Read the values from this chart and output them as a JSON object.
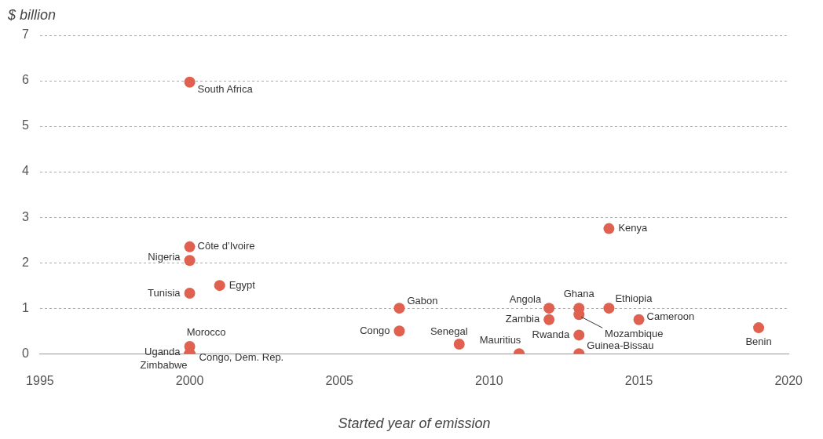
{
  "chart_data": {
    "type": "scatter",
    "ylabel": "$ billion",
    "xlabel": "Started year of emission",
    "series": [
      {
        "color": "#e0614f",
        "x": [
          2000,
          2000,
          2000,
          2000,
          2001,
          2000,
          2000,
          2000,
          2000,
          2007,
          2007,
          2009,
          2011,
          2012,
          2012,
          2013,
          2013,
          2013,
          2013,
          2014,
          2014,
          2015,
          2019
        ],
        "values": [
          5.97,
          2.35,
          2.05,
          1.33,
          1.5,
          0.16,
          0,
          0,
          0,
          1.0,
          0.5,
          0.21,
          0,
          1.0,
          0.75,
          1.0,
          0.86,
          0.41,
          0,
          2.75,
          1.0,
          0.75,
          0.57
        ]
      }
    ],
    "annotations": [
      {
        "text": "South Africa",
        "x": 2000,
        "y": 5.97
      },
      {
        "text": "Côte d’Ivoire",
        "x": 2000,
        "y": 2.35
      },
      {
        "text": "Nigeria",
        "x": 2000,
        "y": 2.05
      },
      {
        "text": "Tunisia",
        "x": 2000,
        "y": 1.33
      },
      {
        "text": "Egypt",
        "x": 2001,
        "y": 1.5
      },
      {
        "text": "Morocco",
        "x": 2000,
        "y": 0.16
      },
      {
        "text": "Uganda",
        "x": 2000,
        "y": 0
      },
      {
        "text": "Zimbabwe",
        "x": 2000,
        "y": 0
      },
      {
        "text": "Congo, Dem. Rep.",
        "x": 2000,
        "y": 0
      },
      {
        "text": "Gabon",
        "x": 2007,
        "y": 1.0
      },
      {
        "text": "Congo",
        "x": 2007,
        "y": 0.5
      },
      {
        "text": "Senegal",
        "x": 2009,
        "y": 0.21
      },
      {
        "text": "Mauritius",
        "x": 2011,
        "y": 0
      },
      {
        "text": "Angola",
        "x": 2012,
        "y": 1.0
      },
      {
        "text": "Zambia",
        "x": 2012,
        "y": 0.75
      },
      {
        "text": "Ghana",
        "x": 2013,
        "y": 1.0
      },
      {
        "text": "Mozambique",
        "x": 2013,
        "y": 0.86
      },
      {
        "text": "Rwanda",
        "x": 2013,
        "y": 0.41
      },
      {
        "text": "Guinea-Bissau",
        "x": 2013,
        "y": 0
      },
      {
        "text": "Kenya",
        "x": 2014,
        "y": 2.75
      },
      {
        "text": "Ethiopia",
        "x": 2014,
        "y": 1.0
      },
      {
        "text": "Cameroon",
        "x": 2015,
        "y": 0.75
      },
      {
        "text": "Benin",
        "x": 2019,
        "y": 0.57
      }
    ],
    "xlim": [
      1995,
      2020
    ],
    "xticks": [
      1995,
      2000,
      2005,
      2010,
      2015,
      2020
    ],
    "ylim": [
      0,
      7
    ],
    "yticks": [
      0,
      1,
      2,
      3,
      4,
      5,
      6,
      7
    ],
    "grid": "y",
    "legend": false,
    "marker": "circle"
  }
}
